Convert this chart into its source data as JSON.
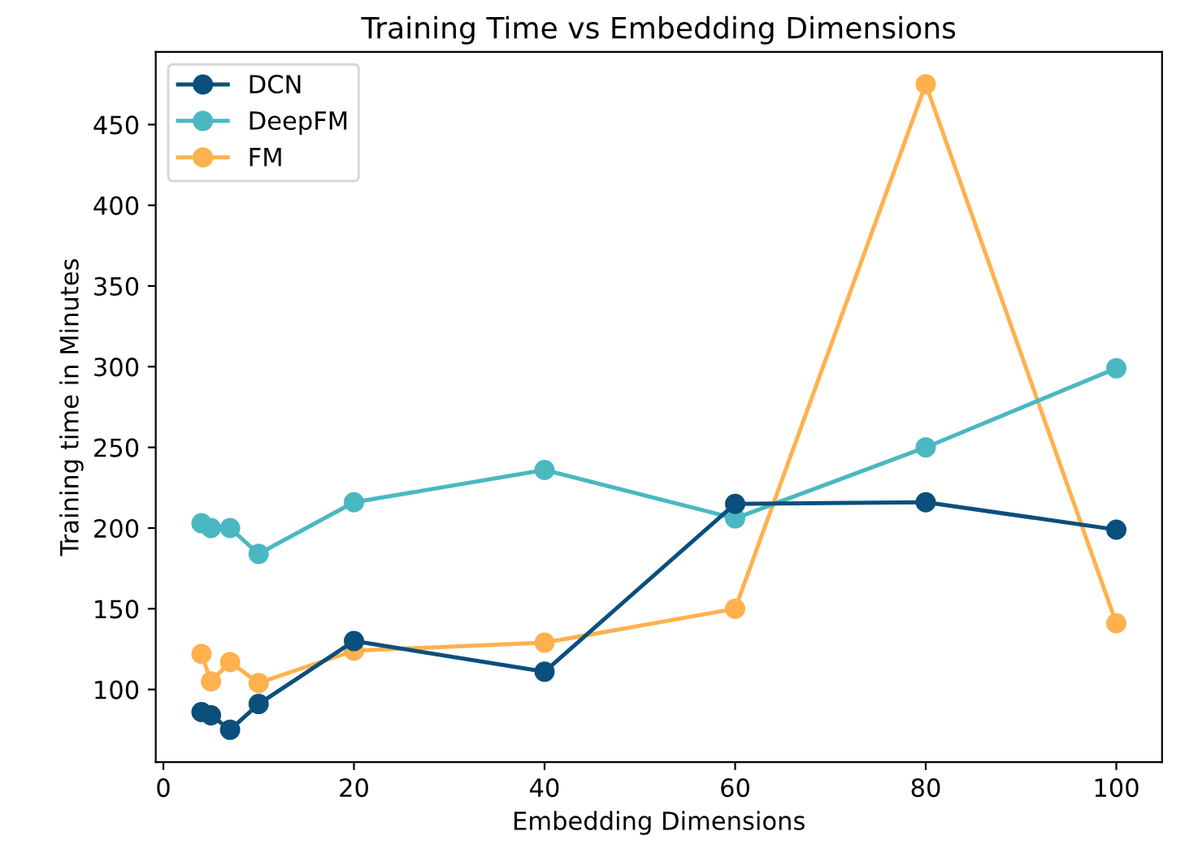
{
  "chart_data": {
    "type": "line",
    "title": "Training Time vs Embedding Dimensions",
    "xlabel": "Embedding Dimensions",
    "ylabel": "Training time in Minutes",
    "x": [
      4,
      5,
      7,
      10,
      20,
      40,
      60,
      80,
      100
    ],
    "series": [
      {
        "name": "DCN",
        "color": "#0b4f7c",
        "values": [
          86,
          84,
          75,
          91,
          130,
          111,
          215,
          216,
          199
        ]
      },
      {
        "name": "DeepFM",
        "color": "#4ab8c1",
        "values": [
          203,
          200,
          200,
          184,
          216,
          236,
          206,
          250,
          299
        ]
      },
      {
        "name": "FM",
        "color": "#ffb14e",
        "values": [
          122,
          105,
          117,
          104,
          124,
          129,
          150,
          475,
          141
        ]
      }
    ],
    "xlim": [
      -0.8,
      104.8
    ],
    "xticks": [
      0,
      20,
      40,
      60,
      80,
      100
    ],
    "ylim": [
      55,
      495
    ],
    "yticks": [
      100,
      150,
      200,
      250,
      300,
      350,
      400,
      450
    ],
    "marker": "circle",
    "line_style": "solid",
    "legend": "top left",
    "grid": false
  }
}
